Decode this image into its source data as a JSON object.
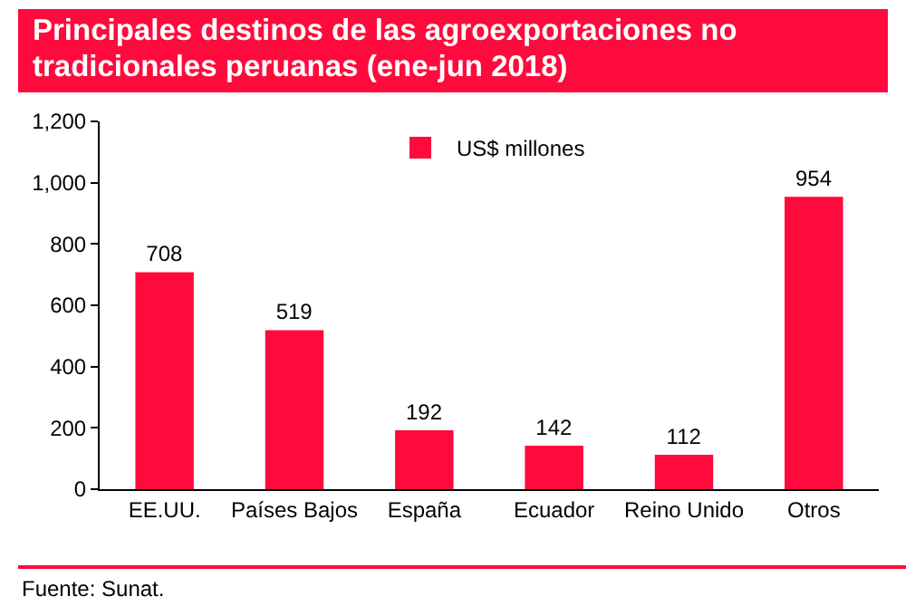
{
  "chart_data": {
    "type": "bar",
    "title": "Principales destinos de las agroexportaciones no tradicionales peruanas (ene-jun 2018)",
    "categories": [
      "EE.UU.",
      "Países Bajos",
      "España",
      "Ecuador",
      "Reino Unido",
      "Otros"
    ],
    "series": [
      {
        "name": "US$ millones",
        "color": "#ff0a3c",
        "values": [
          708,
          519,
          192,
          142,
          112,
          954
        ]
      }
    ],
    "ylim": [
      0,
      1200
    ],
    "yticks": [
      0,
      {
        "value": 200,
        "label": "200"
      },
      {
        "value": 400,
        "label": "400"
      },
      {
        "value": 600,
        "label": "600"
      },
      {
        "value": 800,
        "label": "800"
      },
      {
        "value": 1000,
        "label": "1,000"
      },
      {
        "value": 1200,
        "label": "1,200"
      }
    ],
    "grid": false,
    "legend": "top",
    "data_labels": true,
    "annotations": [
      "Fuente: Sunat."
    ]
  }
}
